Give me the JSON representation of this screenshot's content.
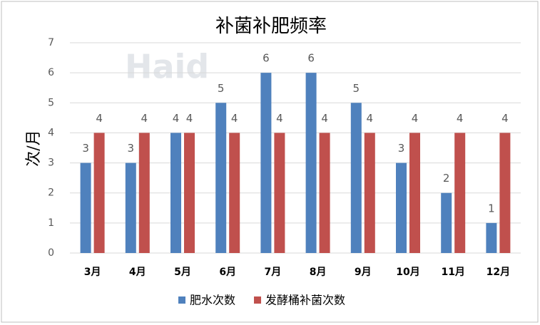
{
  "chart_data": {
    "type": "bar",
    "title": "补菌补肥频率",
    "y_label": "次/月",
    "watermark": "Haid",
    "categories": [
      "3月",
      "4月",
      "5月",
      "6月",
      "7月",
      "8月",
      "9月",
      "10月",
      "11月",
      "12月"
    ],
    "series": [
      {
        "name": "肥水次数",
        "color": "#4f81bd",
        "values": [
          3,
          3,
          4,
          5,
          6,
          6,
          5,
          3,
          2,
          1
        ]
      },
      {
        "name": "发酵桶补菌次数",
        "color": "#c0504d",
        "values": [
          4,
          4,
          4,
          4,
          4,
          4,
          4,
          4,
          4,
          4
        ]
      }
    ],
    "ylim": [
      0,
      7
    ],
    "yticks": [
      0,
      1,
      2,
      3,
      4,
      5,
      6,
      7
    ],
    "grid": true,
    "legend": "bottom",
    "data_labels": true
  }
}
